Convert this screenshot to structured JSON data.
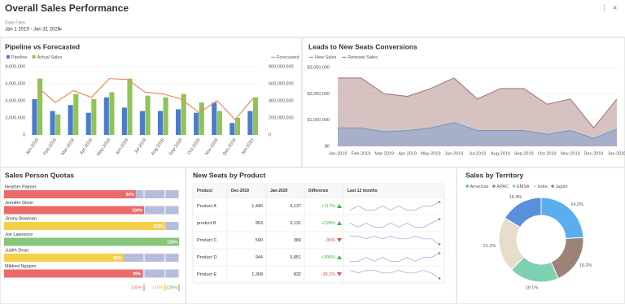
{
  "header": {
    "title": "Overall Sales Performance",
    "filter_label": "Date Filter",
    "filter_value": "Jan 1 2019 - Jan 31 2020"
  },
  "chart_data": [
    {
      "type": "combo",
      "title": "Pipeline vs Forecasted",
      "categories": [
        "Jan-2019",
        "Feb-2019",
        "Mar-2019",
        "Apr-2019",
        "May-2019",
        "Jun-2019",
        "Jul-2019",
        "Aug-2019",
        "Sep-2019",
        "Oct-2019",
        "Nov-2019",
        "Dec-2019",
        "Jan-2020"
      ],
      "series": [
        {
          "name": "Pipeline",
          "color": "#4d7cc7",
          "kind": "bar",
          "values": [
            4200000,
            2800000,
            3500000,
            2600000,
            4400000,
            3200000,
            2800000,
            2800000,
            3000000,
            2600000,
            3800000,
            1400000,
            2800000
          ]
        },
        {
          "name": "Actual Sales",
          "color": "#8dc556",
          "kind": "bar",
          "values": [
            6600000,
            2400000,
            4800000,
            4200000,
            5000000,
            6600000,
            4600000,
            4400000,
            4800000,
            3800000,
            2800000,
            2000000,
            4400000
          ]
        },
        {
          "name": "Forecasted",
          "color": "#f08a5d",
          "kind": "line",
          "axis": "y2",
          "values": [
            560000000,
            380000000,
            520000000,
            440000000,
            660000000,
            650000000,
            500000000,
            480000000,
            420000000,
            260000000,
            400000000,
            180000000,
            430000000
          ]
        }
      ],
      "ylim": [
        0,
        8000000
      ],
      "yticks": [
        0,
        {
          "value": 2000000,
          "label": "2,000,000"
        },
        {
          "value": 4000000,
          "label": "4,000,000"
        },
        {
          "value": 6000000,
          "label": "6,000,000"
        },
        {
          "value": 8000000,
          "label": "8,000,000"
        }
      ],
      "y2lim": [
        0,
        800000000
      ],
      "y2ticks": [
        0,
        {
          "value": 200000000,
          "label": "200,000,000"
        },
        {
          "value": 400000000,
          "label": "400,000,000"
        },
        {
          "value": 600000000,
          "label": "600,000,000"
        },
        {
          "value": 800000000,
          "label": "800,000,000"
        }
      ],
      "grid": true
    },
    {
      "type": "area",
      "title": "Leads to New Seats Conversions",
      "categories": [
        "Jan-2019",
        "Feb-2019",
        "Mar-2019",
        "Apr-2019",
        "May-2019",
        "Jun-2019",
        "Jul-2019",
        "Aug-2019",
        "Sep-2019",
        "Oct-2019",
        "Nov-2019",
        "Dec-2019",
        "Jan-2020"
      ],
      "series": [
        {
          "name": "New Sales",
          "color": "#6f99d0",
          "values": [
            700000,
            700000,
            550000,
            600000,
            700000,
            900000,
            600000,
            600000,
            600000,
            450000,
            600000,
            300000,
            650000
          ]
        },
        {
          "name": "Renewal Sales",
          "color": "#a47b76",
          "values": [
            2600000,
            2600000,
            2000000,
            1900000,
            2200000,
            2600000,
            1800000,
            2200000,
            2200000,
            1600000,
            1800000,
            700000,
            1800000
          ]
        }
      ],
      "ylim": [
        0,
        3000000
      ],
      "yticks": [
        {
          "value": 0,
          "label": "$0"
        },
        {
          "value": 1000000,
          "label": "$1,000,000"
        },
        {
          "value": 2000000,
          "label": "$2,000,000"
        },
        {
          "value": 3000000,
          "label": "$3,000,000"
        }
      ],
      "grid": true
    },
    {
      "type": "hbar",
      "title": "Sales Person Quotas",
      "categories": [
        "Heather Palmer",
        "Jennifer Dixon",
        "Jimmy Bowman",
        "Joe Lawrence",
        "Judith Dean",
        "Mildred Nguyen"
      ],
      "values": [
        94,
        100,
        115,
        125,
        85,
        99
      ],
      "value_labels": [
        "94%",
        "100%",
        "115%",
        "125%",
        "85%",
        "99%"
      ],
      "colors": [
        "#ec6a6a",
        "#ec6a6a",
        "#f6cf4a",
        "#86c57a",
        "#f6cf4a",
        "#ec6a6a"
      ],
      "xlim": [
        0,
        125
      ],
      "xticks": [
        {
          "value": 100,
          "label": "100%"
        },
        {
          "value": 115,
          "label": "115%"
        },
        {
          "value": 125,
          "label": "125%"
        }
      ],
      "tick_colors": [
        "#ec6a6a",
        "#e8b820",
        "#5fae52"
      ]
    },
    {
      "type": "donut",
      "title": "Sales by Territory",
      "categories": [
        "Americas",
        "APAC",
        "EMSA",
        "India",
        "Japan"
      ],
      "values": [
        24.2,
        19.2,
        19.1,
        21.2,
        16.4
      ],
      "value_labels": [
        "24.2%",
        "19.2%",
        "19.1%",
        "21.2%",
        "16.4%"
      ],
      "colors": [
        "#5aaef0",
        "#9c8277",
        "#7fcfb1",
        "#e8dccb",
        "#5a8fd9"
      ]
    }
  ],
  "table": {
    "title": "New Seats by Product",
    "columns": [
      "Product",
      "Dec-2019",
      "Jan-2020",
      "Difference",
      "Last 12 months"
    ],
    "rows": [
      [
        "Product A",
        "1,446",
        "3,137",
        "+117%"
      ],
      [
        "product B",
        "953",
        "3,131",
        "+228%"
      ],
      [
        "Product C",
        "590",
        "389",
        "-35%"
      ],
      [
        "Product D",
        "944",
        "3,851",
        "+308%"
      ],
      [
        "Product E",
        "1,368",
        "832",
        "-39.2%"
      ]
    ],
    "directions": [
      "up",
      "up",
      "down",
      "up",
      "down"
    ],
    "last_12_months": [
      [
        5,
        6,
        5,
        5,
        6,
        5,
        6,
        5,
        5,
        6,
        6,
        7
      ],
      [
        6,
        5,
        6,
        5,
        5,
        6,
        5,
        6,
        5,
        5,
        6,
        7
      ],
      [
        6,
        6,
        5,
        6,
        5,
        6,
        5,
        5,
        6,
        5,
        5,
        3
      ],
      [
        5,
        5,
        6,
        5,
        6,
        5,
        5,
        6,
        5,
        6,
        6,
        7
      ],
      [
        6,
        5,
        6,
        6,
        5,
        5,
        6,
        5,
        5,
        6,
        5,
        3
      ]
    ]
  }
}
